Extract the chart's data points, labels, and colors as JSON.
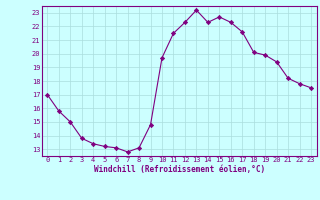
{
  "x": [
    0,
    1,
    2,
    3,
    4,
    5,
    6,
    7,
    8,
    9,
    10,
    11,
    12,
    13,
    14,
    15,
    16,
    17,
    18,
    19,
    20,
    21,
    22,
    23
  ],
  "y": [
    17.0,
    15.8,
    15.0,
    13.8,
    13.4,
    13.2,
    13.1,
    12.8,
    13.1,
    14.8,
    19.7,
    21.5,
    22.3,
    23.2,
    22.3,
    22.7,
    22.3,
    21.6,
    20.1,
    19.9,
    19.4,
    18.2,
    17.8,
    17.5
  ],
  "line_color": "#800080",
  "marker": "D",
  "marker_size": 2.2,
  "bg_color": "#ccffff",
  "grid_color": "#aadddd",
  "xlabel": "Windchill (Refroidissement éolien,°C)",
  "tick_color": "#800080",
  "xlim_min": -0.5,
  "xlim_max": 23.5,
  "ylim_min": 12.5,
  "ylim_max": 23.5,
  "yticks": [
    13,
    14,
    15,
    16,
    17,
    18,
    19,
    20,
    21,
    22,
    23
  ],
  "xticks": [
    0,
    1,
    2,
    3,
    4,
    5,
    6,
    7,
    8,
    9,
    10,
    11,
    12,
    13,
    14,
    15,
    16,
    17,
    18,
    19,
    20,
    21,
    22,
    23
  ],
  "tick_fontsize": 5.0,
  "xlabel_fontsize": 5.5,
  "spine_color": "#800080"
}
